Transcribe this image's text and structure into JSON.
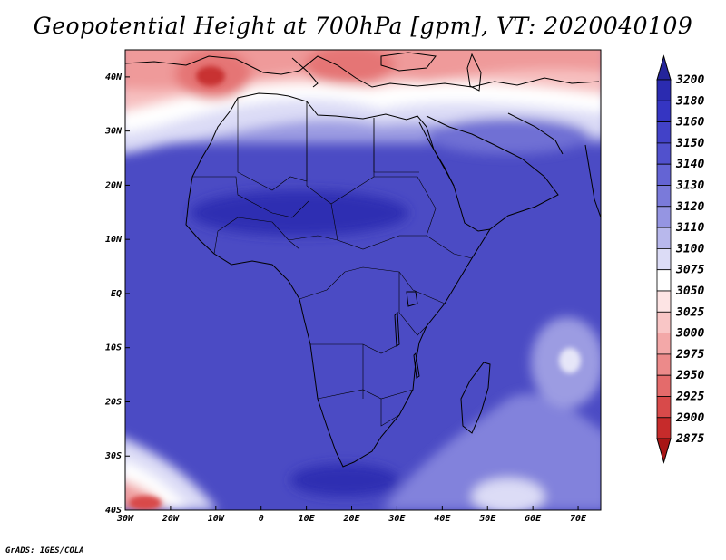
{
  "title": "Geopotential Height at 700hPa [gpm], VT: 2020040109",
  "credit": "GrADS: IGES/COLA",
  "chart_data": {
    "type": "heatmap",
    "variable": "Geopotential Height at 700hPa",
    "units": "gpm",
    "valid_time": "2020040109",
    "lon_range": [
      -30,
      75
    ],
    "lat_range": [
      -40,
      45
    ],
    "xticks": [
      {
        "value": -30,
        "label": "30W"
      },
      {
        "value": -20,
        "label": "20W"
      },
      {
        "value": -10,
        "label": "10W"
      },
      {
        "value": 0,
        "label": "0"
      },
      {
        "value": 10,
        "label": "10E"
      },
      {
        "value": 20,
        "label": "20E"
      },
      {
        "value": 30,
        "label": "30E"
      },
      {
        "value": 40,
        "label": "40E"
      },
      {
        "value": 50,
        "label": "50E"
      },
      {
        "value": 60,
        "label": "60E"
      },
      {
        "value": 70,
        "label": "70E"
      }
    ],
    "yticks": [
      {
        "value": 40,
        "label": "40N"
      },
      {
        "value": 30,
        "label": "30N"
      },
      {
        "value": 20,
        "label": "20N"
      },
      {
        "value": 10,
        "label": "10N"
      },
      {
        "value": 0,
        "label": "EQ"
      },
      {
        "value": -10,
        "label": "10S"
      },
      {
        "value": -20,
        "label": "20S"
      },
      {
        "value": -30,
        "label": "30S"
      },
      {
        "value": -40,
        "label": "40S"
      }
    ],
    "colorbar": {
      "levels": [
        3200,
        3180,
        3160,
        3150,
        3140,
        3130,
        3120,
        3110,
        3100,
        3075,
        3050,
        3025,
        3000,
        2975,
        2950,
        2925,
        2900,
        2875
      ],
      "colors": [
        "#24249a",
        "#2b2bb0",
        "#3535c2",
        "#4242c8",
        "#5151cd",
        "#6464d4",
        "#7a7ada",
        "#9595e2",
        "#b8b8ec",
        "#dcdcf6",
        "#ffffff",
        "#fde4e4",
        "#f9c6c6",
        "#f3a8a8",
        "#ec8a8a",
        "#e46b6b",
        "#d84a4a",
        "#c62b2b",
        "#a81515"
      ]
    },
    "features": [
      {
        "name": "Low over western Mediterranean / Algeria",
        "lon": -8,
        "lat": 40,
        "approx_value": 2925
      },
      {
        "name": "Low over Greece / Aegean",
        "lon": 22,
        "lat": 40,
        "approx_value": 2950
      },
      {
        "name": "Low southwest of Cape (South Atlantic)",
        "lon": -25,
        "lat": -40,
        "approx_value": 2950
      },
      {
        "name": "High over Sahel",
        "lon": 10,
        "lat": 17,
        "approx_value": 3170
      },
      {
        "name": "High over South Africa",
        "lon": 22,
        "lat": -35,
        "approx_value": 3170
      },
      {
        "name": "Weaker heights near Madagascar east",
        "lon": 67,
        "lat": -13,
        "approx_value": 3100
      }
    ]
  }
}
